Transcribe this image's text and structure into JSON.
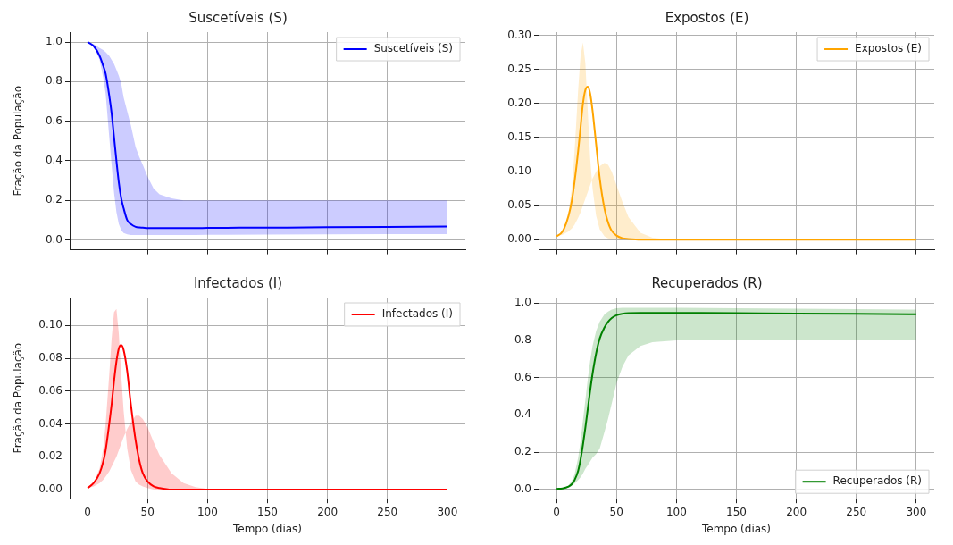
{
  "chart_data": [
    {
      "type": "line",
      "title": "Suscetíveis (S)",
      "ylabel": "Fração da População",
      "legend": "top right",
      "grid": true,
      "tick_labels": "y",
      "xlim": [
        -15,
        315
      ],
      "xticks": [
        0,
        50,
        100,
        150,
        200,
        250,
        300
      ],
      "ylim": [
        -0.05,
        1.05
      ],
      "yticks": [
        {
          "value": 0,
          "label": "0.0"
        },
        0.2,
        0.4,
        0.6,
        0.8,
        {
          "value": 1,
          "label": "1.0"
        }
      ],
      "x": [
        0,
        5,
        10,
        13,
        15,
        18,
        20,
        22,
        24,
        26,
        28,
        30,
        33,
        36,
        40,
        43,
        46,
        50,
        55,
        60,
        70,
        80,
        90,
        100,
        150,
        200,
        250,
        300
      ],
      "series": [
        {
          "name": "Suscetíveis (S)",
          "color": "#0000ff",
          "values": [
            1.0,
            0.98,
            0.93,
            0.88,
            0.84,
            0.73,
            0.64,
            0.52,
            0.4,
            0.29,
            0.21,
            0.16,
            0.1,
            0.08,
            0.066,
            0.063,
            0.062,
            0.06,
            0.06,
            0.06,
            0.06,
            0.06,
            0.06,
            0.061,
            0.062,
            0.064,
            0.066,
            0.068
          ],
          "lower": [
            1.0,
            0.98,
            0.91,
            0.82,
            0.74,
            0.52,
            0.38,
            0.24,
            0.14,
            0.08,
            0.05,
            0.035,
            0.028,
            0.025,
            0.025,
            0.025,
            0.025,
            0.025,
            0.025,
            0.025,
            0.025,
            0.025,
            0.025,
            0.026,
            0.027,
            0.028,
            0.029,
            0.03
          ],
          "upper": [
            1.0,
            0.99,
            0.97,
            0.96,
            0.95,
            0.93,
            0.91,
            0.89,
            0.86,
            0.83,
            0.79,
            0.72,
            0.65,
            0.58,
            0.47,
            0.42,
            0.38,
            0.32,
            0.26,
            0.23,
            0.21,
            0.2,
            0.2,
            0.2,
            0.2,
            0.2,
            0.2,
            0.2
          ]
        }
      ]
    },
    {
      "type": "line",
      "title": "Expostos (E)",
      "legend": "top right",
      "grid": true,
      "tick_labels": "y",
      "xlim": [
        -15,
        315
      ],
      "xticks": [
        0,
        50,
        100,
        150,
        200,
        250,
        300
      ],
      "ylim": [
        -0.015,
        0.305
      ],
      "yticks": [
        {
          "value": 0,
          "label": "0.00"
        },
        0.05,
        {
          "value": 0.1,
          "label": "0.10"
        },
        0.15,
        {
          "value": 0.2,
          "label": "0.20"
        },
        0.25,
        {
          "value": 0.3,
          "label": "0.30"
        }
      ],
      "x": [
        0,
        5,
        10,
        13,
        15,
        18,
        20,
        22,
        24,
        26,
        28,
        30,
        33,
        36,
        40,
        43,
        46,
        50,
        55,
        60,
        70,
        80,
        90,
        100,
        150,
        200,
        250,
        300
      ],
      "series": [
        {
          "name": "Expostos (E)",
          "color": "#ffa500",
          "values": [
            0.005,
            0.012,
            0.035,
            0.06,
            0.085,
            0.13,
            0.165,
            0.2,
            0.22,
            0.225,
            0.215,
            0.19,
            0.14,
            0.09,
            0.045,
            0.025,
            0.013,
            0.006,
            0.002,
            0.001,
            0,
            0,
            0,
            0,
            0,
            0,
            0,
            0
          ],
          "lower": [
            0.005,
            0.007,
            0.012,
            0.017,
            0.022,
            0.032,
            0.04,
            0.05,
            0.06,
            0.07,
            0.08,
            0.09,
            0.1,
            0.108,
            0.113,
            0.11,
            0.1,
            0.08,
            0.055,
            0.033,
            0.01,
            0.003,
            0.001,
            0,
            0,
            0,
            0,
            0
          ],
          "upper": [
            0.005,
            0.01,
            0.04,
            0.08,
            0.13,
            0.22,
            0.27,
            0.29,
            0.26,
            0.19,
            0.12,
            0.075,
            0.035,
            0.015,
            0.005,
            0.002,
            0.001,
            0,
            0,
            0,
            0,
            0,
            0,
            0,
            0,
            0,
            0,
            0
          ]
        }
      ]
    },
    {
      "type": "line",
      "title": "Infectados (I)",
      "ylabel": "Fração da População",
      "xlabel": "Tempo (dias)",
      "legend": "top right",
      "grid": true,
      "xlim": [
        -15,
        315
      ],
      "xticks": [
        0,
        50,
        100,
        150,
        200,
        250,
        300
      ],
      "ylim": [
        -0.0055,
        0.117
      ],
      "yticks": [
        {
          "value": 0,
          "label": "0.00"
        },
        0.02,
        0.04,
        0.06,
        0.08,
        {
          "value": 0.1,
          "label": "0.10"
        }
      ],
      "x": [
        0,
        5,
        10,
        13,
        15,
        18,
        20,
        22,
        24,
        26,
        28,
        30,
        33,
        36,
        40,
        43,
        46,
        50,
        55,
        60,
        70,
        80,
        90,
        100,
        150,
        200,
        250,
        300
      ],
      "series": [
        {
          "name": "Infectados (I)",
          "color": "#ff0000",
          "values": [
            0.001,
            0.004,
            0.01,
            0.017,
            0.024,
            0.04,
            0.052,
            0.066,
            0.078,
            0.086,
            0.088,
            0.085,
            0.072,
            0.052,
            0.03,
            0.018,
            0.01,
            0.005,
            0.002,
            0.001,
            0,
            0,
            0,
            0,
            0,
            0,
            0,
            0
          ],
          "lower": [
            0.001,
            0.002,
            0.004,
            0.006,
            0.008,
            0.011,
            0.014,
            0.017,
            0.02,
            0.024,
            0.028,
            0.032,
            0.037,
            0.041,
            0.045,
            0.045,
            0.043,
            0.038,
            0.029,
            0.021,
            0.01,
            0.004,
            0.0015,
            0.0005,
            0,
            0,
            0,
            0
          ],
          "upper": [
            0.001,
            0.004,
            0.013,
            0.025,
            0.04,
            0.07,
            0.092,
            0.108,
            0.11,
            0.095,
            0.07,
            0.048,
            0.025,
            0.012,
            0.005,
            0.003,
            0.002,
            0.001,
            0,
            0,
            0,
            0,
            0,
            0,
            0,
            0,
            0,
            0
          ]
        }
      ]
    },
    {
      "type": "line",
      "title": "Recuperados (R)",
      "xlabel": "Tempo (dias)",
      "legend": "bottom right",
      "grid": true,
      "xlim": [
        -15,
        315
      ],
      "xticks": [
        0,
        50,
        100,
        150,
        200,
        250,
        300
      ],
      "ylim": [
        -0.05,
        1.03
      ],
      "yticks": [
        {
          "value": 0,
          "label": "0.0"
        },
        0.2,
        0.4,
        0.6,
        0.8,
        {
          "value": 1,
          "label": "1.0"
        }
      ],
      "x": [
        0,
        5,
        10,
        13,
        15,
        18,
        20,
        22,
        24,
        26,
        28,
        30,
        33,
        36,
        40,
        43,
        46,
        50,
        55,
        60,
        70,
        80,
        90,
        100,
        150,
        200,
        250,
        300
      ],
      "series": [
        {
          "name": "Recuperados (R)",
          "color": "#008000",
          "values": [
            0.003,
            0.005,
            0.015,
            0.03,
            0.05,
            0.1,
            0.16,
            0.24,
            0.33,
            0.43,
            0.53,
            0.62,
            0.73,
            0.81,
            0.87,
            0.9,
            0.92,
            0.935,
            0.943,
            0.946,
            0.947,
            0.947,
            0.947,
            0.947,
            0.946,
            0.944,
            0.942,
            0.94
          ],
          "lower": [
            0.002,
            0.004,
            0.01,
            0.02,
            0.03,
            0.05,
            0.065,
            0.085,
            0.11,
            0.13,
            0.15,
            0.17,
            0.19,
            0.22,
            0.31,
            0.38,
            0.46,
            0.57,
            0.66,
            0.72,
            0.77,
            0.79,
            0.795,
            0.8,
            0.8,
            0.8,
            0.8,
            0.8
          ],
          "upper": [
            0.003,
            0.006,
            0.02,
            0.05,
            0.08,
            0.17,
            0.26,
            0.37,
            0.48,
            0.59,
            0.69,
            0.77,
            0.85,
            0.9,
            0.94,
            0.955,
            0.965,
            0.972,
            0.975,
            0.975,
            0.975,
            0.975,
            0.975,
            0.975,
            0.973,
            0.97,
            0.968,
            0.965
          ]
        }
      ]
    }
  ]
}
